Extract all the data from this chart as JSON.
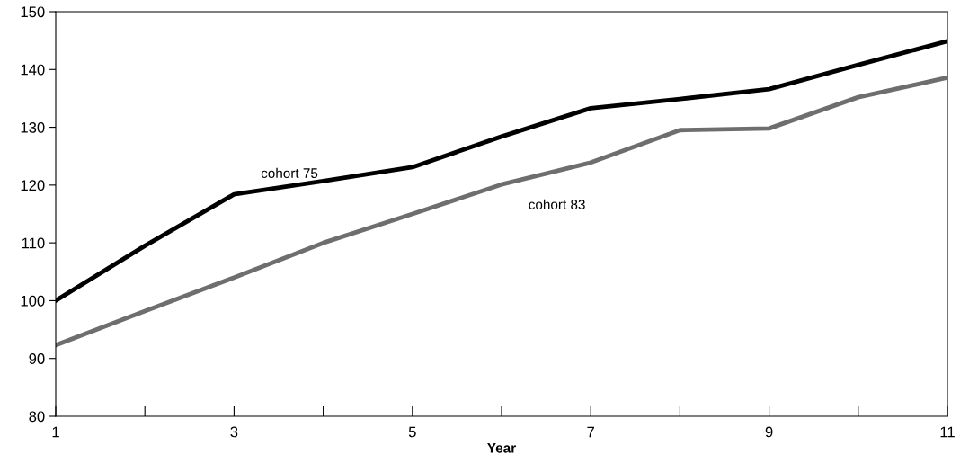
{
  "chart_data": {
    "type": "line",
    "xlabel": "Year",
    "x": [
      1,
      2,
      3,
      4,
      5,
      6,
      7,
      8,
      9,
      10,
      11
    ],
    "series": [
      {
        "name": "cohort 75",
        "color": "#000000",
        "values": [
          100,
          109.5,
          118.4,
          120.7,
          123.1,
          128.4,
          133.3,
          134.9,
          136.6,
          140.8,
          144.9
        ]
      },
      {
        "name": "cohort 83",
        "color": "#6e6e6e",
        "values": [
          92.3,
          98.2,
          104,
          110,
          115,
          120.1,
          123.9,
          129.5,
          129.8,
          135.2,
          138.6
        ]
      }
    ],
    "xlim": [
      1,
      11
    ],
    "ylim": [
      80,
      150
    ],
    "xticks": [
      1,
      {
        "value": 2,
        "label": null
      },
      3,
      {
        "value": 4,
        "label": null
      },
      5,
      {
        "value": 6,
        "label": null
      },
      7,
      {
        "value": 8,
        "label": null
      },
      9,
      {
        "value": 10,
        "label": null
      },
      11
    ],
    "yticks": [
      80,
      90,
      100,
      110,
      120,
      130,
      140,
      150
    ],
    "grid": false,
    "legend": false,
    "marker": "none",
    "line_style": "solid"
  }
}
